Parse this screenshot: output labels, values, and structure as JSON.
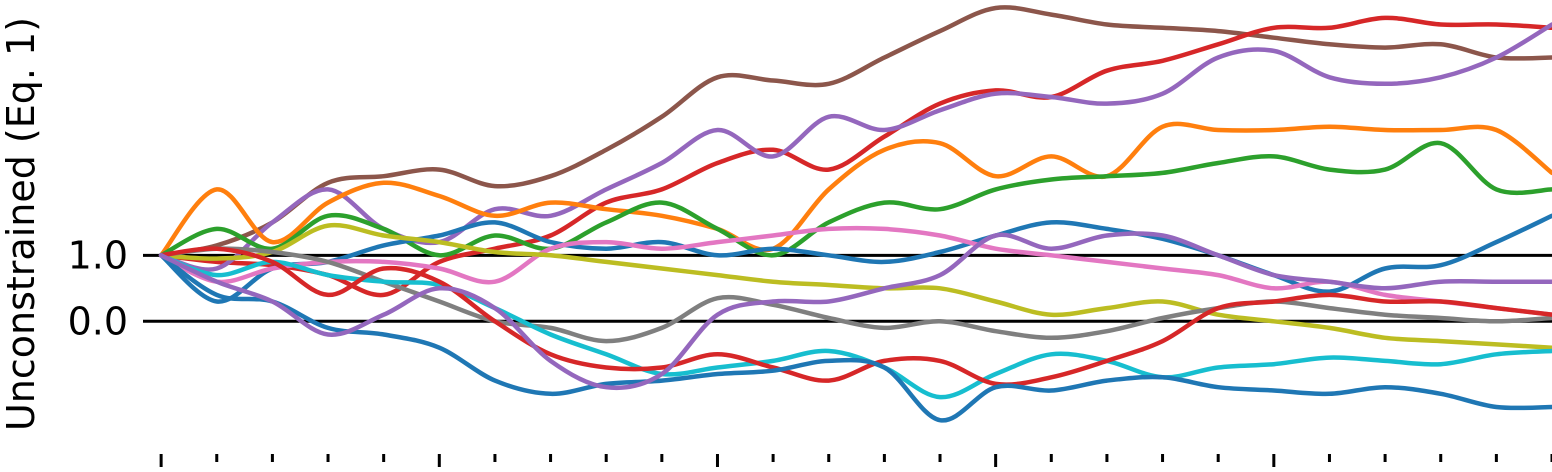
{
  "chart_data": {
    "type": "line",
    "title": "",
    "xlabel": "",
    "ylabel": "Unconstrained (Eq. 1)",
    "x": [
      0,
      0.1,
      0.2,
      0.3,
      0.4,
      0.5,
      0.6,
      0.7,
      0.8,
      0.9,
      1.0,
      1.1,
      1.2,
      1.3,
      1.4,
      1.5,
      1.6,
      1.7,
      1.8,
      1.9,
      2.0,
      2.1,
      2.2,
      2.3,
      2.4,
      2.5
    ],
    "xlim": [
      -0.02,
      2.5
    ],
    "ylim": [
      -1.8,
      4.75
    ],
    "y_ticks": [
      0.0,
      1.0
    ],
    "y_tick_labels": [
      "0.0",
      "1.0"
    ],
    "reference_lines": [
      0.0,
      1.0
    ],
    "x_minor_ticks": [
      0,
      0.1,
      0.2,
      0.3,
      0.4,
      0.5,
      0.6,
      0.7,
      0.8,
      0.9,
      1.0,
      1.1,
      1.2,
      1.3,
      1.4,
      1.5,
      1.6,
      1.7,
      1.8,
      1.9,
      2.0,
      2.1,
      2.2,
      2.3,
      2.4,
      2.5
    ],
    "x_major_ticks": [
      0,
      0.5,
      1.0,
      1.5,
      2.0
    ],
    "grid": false,
    "series": [
      {
        "color": "#8c564b",
        "values": [
          1.0,
          1.15,
          1.5,
          2.1,
          2.2,
          2.3,
          2.05,
          2.2,
          2.6,
          3.1,
          3.7,
          3.65,
          3.6,
          4.0,
          4.4,
          4.75,
          4.65,
          4.5,
          4.45,
          4.4,
          4.3,
          4.2,
          4.15,
          4.2,
          4.0,
          4.0
        ]
      },
      {
        "color": "#d62728",
        "values": [
          1.0,
          0.9,
          0.85,
          0.7,
          0.4,
          0.9,
          1.1,
          1.3,
          1.8,
          2.0,
          2.4,
          2.6,
          2.3,
          2.8,
          3.3,
          3.5,
          3.4,
          3.8,
          3.95,
          4.2,
          4.45,
          4.45,
          4.6,
          4.5,
          4.5,
          4.45
        ]
      },
      {
        "color": "#9467bd",
        "values": [
          1.0,
          0.8,
          1.5,
          2.0,
          1.4,
          1.2,
          1.7,
          1.6,
          2.0,
          2.4,
          2.9,
          2.5,
          3.1,
          2.9,
          3.2,
          3.45,
          3.4,
          3.3,
          3.45,
          4.0,
          4.1,
          3.7,
          3.6,
          3.7,
          4.0,
          4.5
        ]
      },
      {
        "color": "#ff7f0e",
        "values": [
          1.0,
          2.0,
          1.2,
          1.8,
          2.1,
          1.9,
          1.6,
          1.8,
          1.7,
          1.6,
          1.4,
          1.1,
          2.0,
          2.6,
          2.7,
          2.2,
          2.5,
          2.2,
          2.95,
          2.9,
          2.9,
          2.95,
          2.9,
          2.9,
          2.9,
          2.25
        ]
      },
      {
        "color": "#2ca02c",
        "values": [
          1.0,
          1.4,
          1.1,
          1.6,
          1.4,
          1.0,
          1.3,
          1.1,
          1.5,
          1.8,
          1.4,
          1.0,
          1.5,
          1.8,
          1.7,
          2.0,
          2.15,
          2.2,
          2.25,
          2.4,
          2.5,
          2.3,
          2.3,
          2.7,
          2.0,
          2.0
        ]
      },
      {
        "color": "#1f77b4",
        "values": [
          1.0,
          0.3,
          0.8,
          0.9,
          1.15,
          1.3,
          1.5,
          1.2,
          1.1,
          1.2,
          1.0,
          1.1,
          1.0,
          0.9,
          1.05,
          1.3,
          1.5,
          1.4,
          1.25,
          1.0,
          0.7,
          0.45,
          0.8,
          0.85,
          1.2,
          1.6
        ]
      },
      {
        "color": "#e377c2",
        "values": [
          1.0,
          0.6,
          0.8,
          0.9,
          0.9,
          0.8,
          0.6,
          1.1,
          1.2,
          1.1,
          1.2,
          1.3,
          1.4,
          1.4,
          1.3,
          1.1,
          1.0,
          0.9,
          0.8,
          0.7,
          0.5,
          0.6,
          0.4,
          0.3,
          0.2,
          0.1
        ]
      },
      {
        "color": "#bcbd22",
        "values": [
          1.0,
          0.95,
          1.05,
          1.45,
          1.3,
          1.2,
          1.05,
          1.0,
          0.9,
          0.8,
          0.7,
          0.6,
          0.55,
          0.5,
          0.5,
          0.3,
          0.1,
          0.2,
          0.3,
          0.1,
          0.0,
          -0.1,
          -0.25,
          -0.3,
          -0.35,
          -0.4
        ]
      },
      {
        "color": "#7f7f7f",
        "values": [
          1.0,
          1.1,
          1.05,
          0.9,
          0.6,
          0.3,
          0.0,
          -0.1,
          -0.3,
          -0.1,
          0.35,
          0.25,
          0.05,
          -0.1,
          0.0,
          -0.15,
          -0.25,
          -0.15,
          0.05,
          0.2,
          0.3,
          0.2,
          0.1,
          0.05,
          0.0,
          0.05
        ]
      },
      {
        "color": "#17becf",
        "values": [
          1.0,
          0.7,
          0.9,
          0.7,
          0.6,
          0.55,
          0.2,
          -0.2,
          -0.5,
          -0.8,
          -0.7,
          -0.6,
          -0.45,
          -0.7,
          -1.15,
          -0.8,
          -0.5,
          -0.6,
          -0.85,
          -0.7,
          -0.65,
          -0.55,
          -0.6,
          -0.65,
          -0.5,
          -0.45
        ]
      },
      {
        "color": "#d62728",
        "values": [
          1.0,
          1.1,
          0.9,
          0.4,
          0.8,
          0.6,
          0.0,
          -0.5,
          -0.7,
          -0.7,
          -0.5,
          -0.7,
          -0.9,
          -0.6,
          -0.6,
          -0.95,
          -0.85,
          -0.6,
          -0.3,
          0.2,
          0.3,
          0.4,
          0.3,
          0.3,
          0.2,
          0.1
        ]
      },
      {
        "color": "#1f77b4",
        "values": [
          1.0,
          0.4,
          0.3,
          -0.1,
          -0.2,
          -0.4,
          -0.9,
          -1.1,
          -0.95,
          -0.9,
          -0.8,
          -0.75,
          -0.6,
          -0.7,
          -1.5,
          -1.0,
          -1.05,
          -0.9,
          -0.85,
          -1.0,
          -1.05,
          -1.1,
          -1.0,
          -1.1,
          -1.3,
          -1.3
        ]
      },
      {
        "color": "#9467bd",
        "values": [
          1.0,
          0.6,
          0.3,
          -0.2,
          0.1,
          0.5,
          0.2,
          -0.6,
          -1.0,
          -0.8,
          0.1,
          0.3,
          0.3,
          0.5,
          0.7,
          1.3,
          1.1,
          1.3,
          1.3,
          1.0,
          0.7,
          0.6,
          0.5,
          0.6,
          0.6,
          0.6
        ]
      }
    ]
  }
}
